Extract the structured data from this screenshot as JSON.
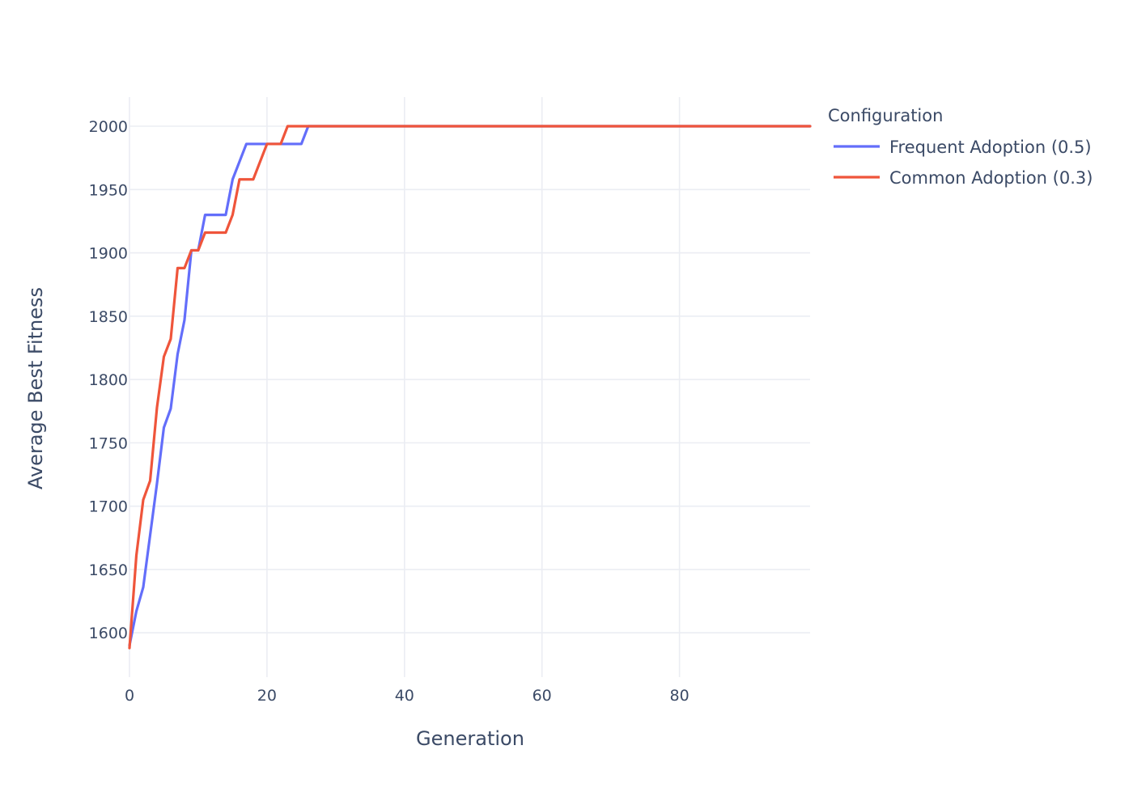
{
  "chart_data": {
    "type": "line",
    "title": "",
    "xlabel": "Generation",
    "ylabel": "Average Best Fitness",
    "xlim": [
      0,
      99
    ],
    "ylim": [
      1565,
      2023
    ],
    "x_ticks": [
      0,
      20,
      40,
      60,
      80
    ],
    "y_ticks": [
      1600,
      1650,
      1700,
      1750,
      1800,
      1850,
      1900,
      1950,
      2000
    ],
    "grid": true,
    "legend": {
      "title": "Configuration",
      "placement": "top-right-outside"
    },
    "series": [
      {
        "name": "Frequent Adoption (0.5)",
        "color": "#636efa",
        "x": [
          0,
          1,
          2,
          3,
          4,
          5,
          6,
          7,
          8,
          9,
          10,
          11,
          12,
          13,
          14,
          15,
          16,
          17,
          18,
          19,
          20,
          21,
          22,
          23,
          24,
          25,
          26,
          27,
          99
        ],
        "y": [
          1590,
          1617,
          1636,
          1677,
          1718,
          1762,
          1777,
          1820,
          1847,
          1902,
          1902,
          1930,
          1930,
          1930,
          1930,
          1958,
          1972,
          1986,
          1986,
          1986,
          1986,
          1986,
          1986,
          1986,
          1986,
          1986,
          2000,
          2000,
          2000
        ]
      },
      {
        "name": "Common Adoption (0.3)",
        "color": "#ef553b",
        "x": [
          0,
          1,
          2,
          3,
          4,
          5,
          6,
          7,
          8,
          9,
          10,
          11,
          12,
          13,
          14,
          15,
          16,
          17,
          18,
          19,
          20,
          21,
          22,
          23,
          24,
          99
        ],
        "y": [
          1588,
          1661,
          1705,
          1720,
          1778,
          1818,
          1832,
          1888,
          1888,
          1902,
          1902,
          1916,
          1916,
          1916,
          1916,
          1930,
          1958,
          1958,
          1958,
          1972,
          1986,
          1986,
          1986,
          2000,
          2000,
          2000
        ]
      }
    ]
  }
}
